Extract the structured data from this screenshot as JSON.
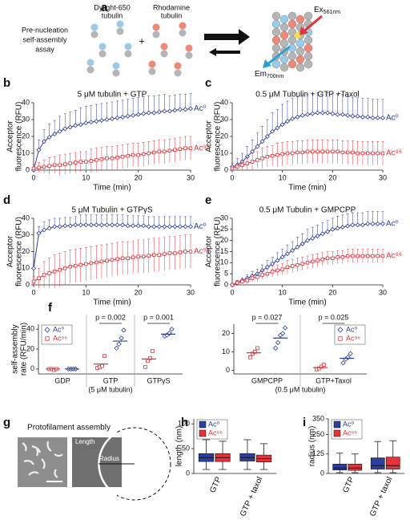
{
  "panel_a": {
    "label": "a",
    "title": [
      "Pre-nucleation",
      "self-assembly",
      "assay"
    ],
    "donor": [
      "Dylight-650",
      "tubulin"
    ],
    "plus": "+",
    "acceptor": [
      "Rhodamine",
      "tubulin"
    ],
    "ex": "Ex",
    "ex_sub": "561nm",
    "em": "Em",
    "em_sub": "700nm"
  },
  "panel_g": {
    "label": "g",
    "title": "Protofilament assembly",
    "length": "Length",
    "radius": "Radius"
  },
  "chart_data": [
    {
      "type": "line",
      "panel": "b",
      "title": "5 μM tubulin + GTP",
      "xlabel": "Time (min)",
      "ylabel": [
        "Acceptor",
        "fluorescence (RFU)"
      ],
      "xlim": [
        0,
        30
      ],
      "xticks": [
        0,
        10,
        20,
        30
      ],
      "ylim": [
        0,
        40
      ],
      "yticks": [
        0,
        10,
        20,
        30,
        40
      ],
      "x": [
        0,
        1,
        2,
        3,
        4,
        5,
        6,
        7,
        8,
        9,
        10,
        11,
        12,
        13,
        14,
        15,
        16,
        17,
        18,
        19,
        20,
        21,
        22,
        23,
        24,
        25,
        26,
        27,
        28,
        29,
        30
      ],
      "series": [
        {
          "name": "Ac⁰",
          "color": "#2c3e9e",
          "marker": "diamond",
          "error_direction": "up",
          "values": [
            0,
            12,
            17,
            19.5,
            21.5,
            23,
            24.5,
            25.5,
            26.5,
            27,
            28,
            28.5,
            29,
            29.5,
            30,
            30.5,
            31,
            31.5,
            32,
            32.5,
            33,
            33.5,
            34,
            34,
            34.5,
            35,
            35,
            35.5,
            36,
            36,
            36.5
          ],
          "errors": [
            1,
            6,
            7,
            8,
            8,
            9,
            9,
            9,
            9,
            10,
            10,
            10,
            10,
            10,
            10,
            10,
            10,
            10,
            10,
            10,
            10,
            10,
            10,
            10,
            10,
            10,
            9,
            9,
            9,
            9,
            9
          ]
        },
        {
          "name": "Ac⁹⁶",
          "color": "#e3343c",
          "marker": "square",
          "error_direction": "both",
          "values": [
            1,
            1.5,
            2,
            2.5,
            3,
            3,
            3.5,
            4,
            4.5,
            5,
            5,
            5.5,
            6,
            6.5,
            7,
            7,
            7.5,
            8,
            8.5,
            9,
            9,
            9.5,
            10,
            10.5,
            11,
            11,
            11.5,
            12,
            12.5,
            13,
            13
          ],
          "errors": [
            2,
            3,
            4,
            5,
            5,
            6,
            6,
            6,
            6,
            6,
            6,
            7,
            7,
            7,
            7,
            7,
            7,
            7,
            7,
            7,
            7,
            7,
            7,
            7,
            7,
            7,
            7,
            7,
            7,
            7,
            7
          ]
        }
      ]
    },
    {
      "type": "line",
      "panel": "c",
      "title": "0.5 μM Tubulin + GTP +Taxol",
      "xlabel": "Time (min)",
      "ylabel": [
        "Acceptor",
        "fluorescence (RFU)"
      ],
      "xlim": [
        0,
        30
      ],
      "xticks": [
        0,
        10,
        20,
        30
      ],
      "ylim": [
        0,
        40
      ],
      "yticks": [
        0,
        10,
        20,
        30,
        40
      ],
      "x": [
        0,
        1,
        2,
        3,
        4,
        5,
        6,
        7,
        8,
        9,
        10,
        11,
        12,
        13,
        14,
        15,
        16,
        17,
        18,
        19,
        20,
        21,
        22,
        23,
        24,
        25,
        26,
        27,
        28,
        29,
        30
      ],
      "series": [
        {
          "name": "Ac⁰",
          "color": "#2c3e9e",
          "marker": "diamond",
          "error_direction": "up",
          "values": [
            2,
            3,
            5,
            8,
            11,
            14,
            17,
            20,
            23,
            25,
            27,
            29,
            30.5,
            31.5,
            32.5,
            33,
            33.5,
            34,
            34,
            34,
            33.5,
            33,
            33,
            32.5,
            32,
            32,
            31.5,
            31.5,
            31,
            31,
            31
          ],
          "errors": [
            2,
            4,
            5,
            6,
            7,
            8,
            9,
            10,
            11,
            11,
            12,
            12,
            12,
            12,
            12,
            12,
            12,
            12,
            12,
            12,
            12,
            12,
            12,
            11,
            11,
            11,
            11,
            11,
            11,
            11,
            11
          ]
        },
        {
          "name": "Ac⁹⁶",
          "color": "#e3343c",
          "marker": "square",
          "error_direction": "both",
          "values": [
            1,
            2,
            3,
            4,
            5,
            6,
            7,
            8,
            8.5,
            9,
            9.5,
            10,
            10,
            10.5,
            10.5,
            11,
            11,
            11,
            11,
            11,
            11,
            11,
            10.5,
            10.5,
            10.5,
            10,
            10,
            10,
            10,
            10,
            10
          ],
          "errors": [
            1,
            2,
            3,
            4,
            5,
            5,
            6,
            6,
            6,
            7,
            7,
            7,
            7,
            7,
            7,
            7,
            7,
            7,
            7,
            7,
            7,
            7,
            7,
            7,
            7,
            7,
            7,
            7,
            7,
            7,
            7
          ]
        }
      ]
    },
    {
      "type": "line",
      "panel": "d",
      "title": "5 μM Tubulin + GTPγS",
      "xlabel": "Time (min)",
      "ylabel": [
        "Acceptor",
        "fluorescence (RFU)"
      ],
      "xlim": [
        0,
        30
      ],
      "xticks": [
        0,
        10,
        20,
        30
      ],
      "ylim": [
        0,
        40
      ],
      "yticks": [
        0,
        10,
        20,
        30,
        40
      ],
      "x": [
        0,
        1,
        2,
        3,
        4,
        5,
        6,
        7,
        8,
        9,
        10,
        11,
        12,
        13,
        14,
        15,
        16,
        17,
        18,
        19,
        20,
        21,
        22,
        23,
        24,
        25,
        26,
        27,
        28,
        29,
        30
      ],
      "series": [
        {
          "name": "Ac⁰",
          "color": "#2c3e9e",
          "marker": "diamond",
          "error_direction": "up",
          "values": [
            10,
            31,
            33,
            34,
            35,
            35,
            35.5,
            35.5,
            36,
            36,
            36,
            36,
            36,
            36,
            36,
            36,
            36,
            36,
            35.5,
            35.5,
            35.5,
            35.5,
            35,
            35,
            35,
            35,
            35,
            35,
            35,
            35,
            35
          ],
          "errors": [
            2,
            4,
            5,
            5,
            5,
            5,
            5,
            5,
            5,
            6,
            6,
            6,
            6,
            6,
            6,
            6,
            6,
            6,
            6,
            6,
            6,
            6,
            6,
            6,
            6,
            6,
            6,
            6,
            6,
            6,
            6
          ]
        },
        {
          "name": "Ac⁹⁶",
          "color": "#e3343c",
          "marker": "square",
          "error_direction": "both",
          "values": [
            2,
            4,
            6,
            7,
            8,
            9,
            10,
            11,
            11.5,
            12,
            12.5,
            13,
            13.5,
            14,
            14.5,
            15,
            15.5,
            16,
            16,
            16.5,
            17,
            17,
            17.5,
            18,
            18,
            18.5,
            19,
            19,
            19.5,
            20,
            20
          ],
          "errors": [
            3,
            6,
            8,
            9,
            10,
            10,
            10,
            10,
            10,
            10,
            10,
            10,
            10,
            10,
            10,
            10,
            10,
            10,
            10,
            10,
            10,
            10,
            10,
            10,
            10,
            10,
            10,
            10,
            10,
            10,
            10
          ]
        }
      ]
    },
    {
      "type": "line",
      "panel": "e",
      "title": "0.5 μM Tubulin + GMPCPP",
      "xlabel": "Time (min)",
      "ylabel": [
        "Acceptor",
        "fluorescence (RFU)"
      ],
      "xlim": [
        0,
        30
      ],
      "xticks": [
        0,
        10,
        20,
        30
      ],
      "ylim": [
        0,
        30
      ],
      "yticks": [
        0,
        5,
        10,
        15,
        20,
        25,
        30
      ],
      "x": [
        0,
        1,
        2,
        3,
        4,
        5,
        6,
        7,
        8,
        9,
        10,
        11,
        12,
        13,
        14,
        15,
        16,
        17,
        18,
        19,
        20,
        21,
        22,
        23,
        24,
        25,
        26,
        27,
        28,
        29,
        30
      ],
      "series": [
        {
          "name": "Ac⁰",
          "color": "#2c3e9e",
          "marker": "diamond",
          "error_direction": "up",
          "values": [
            0,
            1,
            2,
            3,
            4,
            5,
            6.5,
            8,
            9.5,
            11,
            12.5,
            14,
            15.5,
            17,
            18.5,
            20,
            21,
            22,
            23,
            24,
            25,
            25.5,
            26,
            26.5,
            27,
            27,
            27,
            27.5,
            27.5,
            27.5,
            27.5
          ],
          "errors": [
            0.5,
            1,
            1,
            1.5,
            2,
            2,
            2.5,
            3,
            3,
            3.5,
            3.5,
            4,
            4,
            4.5,
            4.5,
            5,
            5,
            5,
            5,
            5,
            5,
            5.5,
            5.5,
            5.5,
            5.5,
            5.5,
            5.5,
            5.5,
            5.5,
            5.5,
            5.5
          ]
        },
        {
          "name": "Ac⁹⁶",
          "color": "#e3343c",
          "marker": "square",
          "error_direction": "both",
          "values": [
            0,
            1,
            1.5,
            2,
            3,
            3.5,
            4.5,
            5,
            6,
            6.5,
            7,
            8,
            8.5,
            9,
            9.5,
            10,
            10.5,
            11,
            11.5,
            12,
            12,
            12.5,
            12.5,
            13,
            13,
            13,
            13,
            13,
            13,
            13,
            13
          ],
          "errors": [
            0.5,
            1,
            1,
            1.5,
            1.5,
            2,
            2,
            2,
            2.5,
            2.5,
            2.5,
            3,
            3,
            3,
            3,
            3,
            3,
            3,
            3,
            3,
            3,
            3,
            3,
            3,
            3,
            3,
            3,
            3,
            3,
            3,
            3
          ]
        }
      ]
    },
    {
      "type": "strip",
      "panel": "f",
      "ylabel": [
        "self-assembly",
        "rate (RFU/min)"
      ],
      "categories": [
        "GDP",
        "GTP",
        "GTPγS"
      ],
      "note": "(5 μM tubulin)",
      "pvalues": [
        null,
        "p = 0.002",
        "p = 0.001"
      ],
      "ylim": [
        -5,
        45
      ],
      "yticks": [
        0,
        20,
        40
      ],
      "legend": "upper left",
      "series": [
        {
          "name": "Ac⁰",
          "color": "#2c3e9e",
          "marker": "diamond",
          "values": [
            [
              0,
              0,
              0,
              0
            ],
            [
              21,
              25,
              31,
              39
            ],
            [
              33,
              34,
              36,
              40
            ]
          ],
          "means": [
            0,
            28,
            35
          ]
        },
        {
          "name": "Ac⁹⁶",
          "color": "#e3343c",
          "marker": "square",
          "values": [
            [
              0,
              0,
              -1,
              0
            ],
            [
              1,
              2,
              3,
              13
            ],
            [
              2,
              8,
              11,
              18
            ]
          ],
          "means": [
            0,
            5,
            10
          ]
        }
      ]
    },
    {
      "type": "strip",
      "categories": [
        "GMPCPP",
        "GTP+Taxol"
      ],
      "note": "(0.5 μM tubulin)",
      "pvalues": [
        "p = 0.027",
        "p = 0.025"
      ],
      "ylim": [
        -2,
        25
      ],
      "yticks": [
        0,
        10,
        20
      ],
      "legend": "upper right",
      "series": [
        {
          "name": "Ac⁰",
          "color": "#2c3e9e",
          "marker": "diamond",
          "values": [
            [
              12,
              15,
              19,
              20,
              23
            ],
            [
              4,
              6,
              7,
              9
            ]
          ],
          "means": [
            17.5,
            6.5
          ]
        },
        {
          "name": "Ac⁹⁶",
          "color": "#e3343c",
          "marker": "square",
          "values": [
            [
              7,
              9,
              10,
              12
            ],
            [
              0.5,
              1,
              2,
              3
            ]
          ],
          "means": [
            9.5,
            1.5
          ]
        }
      ]
    },
    {
      "type": "box",
      "panel": "h",
      "ylabel": [
        "length (nm)"
      ],
      "categories": [
        "GTP",
        "GTP + taxol"
      ],
      "ylim": [
        0,
        110
      ],
      "yticks": [
        0,
        50,
        100
      ],
      "legend": "upper left",
      "series": [
        {
          "name": "Ac⁰",
          "color": "#2c3e9e",
          "values": [
            [
              8,
              24,
              32,
              40,
              68
            ],
            [
              8,
              25,
              32,
              40,
              68
            ]
          ]
        },
        {
          "name": "Ac⁹⁶",
          "color": "#e3343c",
          "values": [
            [
              8,
              24,
              32,
              40,
              65
            ],
            [
              8,
              23,
              30,
              37,
              60
            ]
          ]
        }
      ]
    },
    {
      "type": "box",
      "panel": "i",
      "ylabel": [
        "radius (nm)"
      ],
      "categories": [
        "GTP",
        "GTP + taxol"
      ],
      "ylim": [
        0,
        350
      ],
      "yticks": [
        0,
        125,
        250,
        350
      ],
      "legend": "upper left",
      "series": [
        {
          "name": "Ac⁰",
          "color": "#2c3e9e",
          "values": [
            [
              5,
              22,
              35,
              60,
              130
            ],
            [
              5,
              28,
              50,
              100,
              205
            ]
          ]
        },
        {
          "name": "Ac⁹⁶",
          "color": "#e3343c",
          "values": [
            [
              5,
              20,
              35,
              60,
              125
            ],
            [
              5,
              28,
              50,
              105,
              210
            ]
          ]
        }
      ]
    }
  ]
}
